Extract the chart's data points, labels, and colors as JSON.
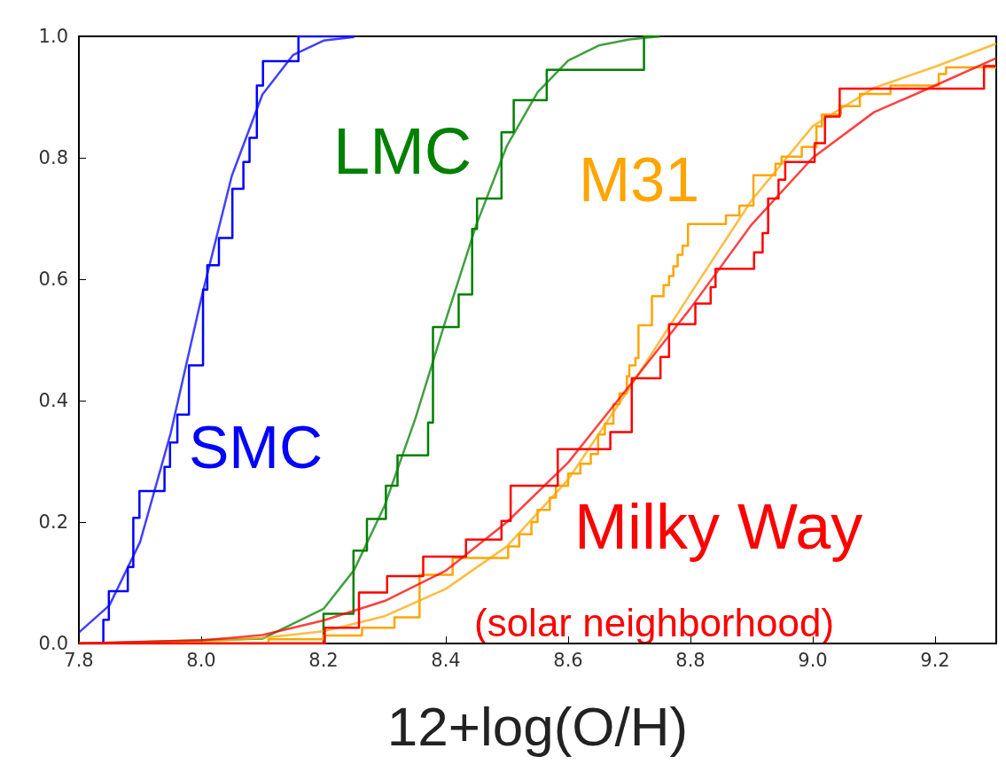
{
  "chart_data": {
    "type": "step",
    "xlabel": "12+log(O/H)",
    "xlim": [
      7.8,
      9.3
    ],
    "ylim": [
      0,
      1
    ],
    "xticks": [
      7.8,
      {
        "value": 8,
        "label": "8.0"
      },
      8.2,
      8.4,
      8.6,
      8.8,
      {
        "value": 9,
        "label": "9.0"
      },
      9.2
    ],
    "yticks": [
      {
        "value": 0,
        "label": "0.0"
      },
      0.2,
      0.4,
      0.6,
      0.8,
      {
        "value": 1,
        "label": "1.0"
      }
    ],
    "grid": false,
    "legend": false,
    "marker": "none",
    "line_style": "solid",
    "annotations": [
      "(solar neighborhood)"
    ],
    "series": [
      {
        "name": "SMC",
        "type": "step",
        "color": "#0000ff",
        "x": [
          7.8,
          7.84,
          7.849,
          7.88,
          7.889,
          7.899,
          7.94,
          7.949,
          7.961,
          7.98,
          8.003,
          8.01,
          8.029,
          8.051,
          8.069,
          8.079,
          8.091,
          8.101,
          8.159,
          8.25
        ],
        "values": [
          0,
          0.039,
          0.086,
          0.126,
          0.207,
          0.251,
          0.291,
          0.331,
          0.377,
          0.458,
          0.583,
          0.623,
          0.668,
          0.749,
          0.793,
          0.833,
          0.919,
          0.959,
          1,
          1
        ]
      },
      {
        "type": "line",
        "color": "#0000ff",
        "x": [
          7.8,
          7.85,
          7.9,
          7.95,
          8.0,
          8.05,
          8.1,
          8.15,
          8.2,
          8.25
        ],
        "values": [
          0.018,
          0.063,
          0.167,
          0.346,
          0.568,
          0.77,
          0.904,
          0.969,
          0.993,
          0.999
        ]
      },
      {
        "name": "LMC",
        "type": "step",
        "color": "#008000",
        "x": [
          7.8,
          8.2,
          8.249,
          8.271,
          8.302,
          8.321,
          8.371,
          8.379,
          8.421,
          8.443,
          8.451,
          8.491,
          8.511,
          8.565,
          8.724,
          8.75
        ],
        "values": [
          0,
          0.049,
          0.153,
          0.205,
          0.26,
          0.31,
          0.364,
          0.521,
          0.575,
          0.683,
          0.733,
          0.842,
          0.895,
          0.945,
          1,
          1
        ]
      },
      {
        "type": "line",
        "color": "#008000",
        "x": [
          7.8,
          8.1,
          8.2,
          8.25,
          8.3,
          8.35,
          8.4,
          8.45,
          8.5,
          8.55,
          8.6,
          8.65,
          8.7,
          8.75
        ],
        "values": [
          0,
          0.008,
          0.057,
          0.121,
          0.227,
          0.37,
          0.533,
          0.69,
          0.82,
          0.908,
          0.96,
          0.985,
          0.995,
          1
        ]
      },
      {
        "name": "M31",
        "type": "step",
        "color": "#ffa500",
        "x": [
          7.8,
          8.11,
          8.2,
          8.263,
          8.316,
          8.357,
          8.411,
          8.502,
          8.52,
          8.54,
          8.55,
          8.57,
          8.58,
          8.6,
          8.62,
          8.637,
          8.649,
          8.66,
          8.674,
          8.684,
          8.696,
          8.7,
          8.71,
          8.715,
          8.737,
          8.756,
          8.765,
          8.772,
          8.779,
          8.787,
          8.796,
          8.858,
          8.88,
          8.903,
          8.939,
          8.949,
          8.982,
          9.006,
          9.015,
          9.046,
          9.077,
          9.127,
          9.206,
          9.218,
          9.3
        ],
        "values": [
          0,
          0.007,
          0.013,
          0.026,
          0.043,
          0.113,
          0.141,
          0.16,
          0.18,
          0.2,
          0.22,
          0.24,
          0.26,
          0.28,
          0.296,
          0.312,
          0.344,
          0.362,
          0.394,
          0.412,
          0.44,
          0.458,
          0.47,
          0.524,
          0.572,
          0.59,
          0.605,
          0.621,
          0.64,
          0.655,
          0.691,
          0.705,
          0.721,
          0.771,
          0.79,
          0.802,
          0.818,
          0.852,
          0.871,
          0.885,
          0.905,
          0.919,
          0.938,
          0.949,
          0.949
        ]
      },
      {
        "type": "line",
        "color": "#ffa500",
        "x": [
          7.8,
          8.0,
          8.1,
          8.2,
          8.3,
          8.4,
          8.5,
          8.6,
          8.7,
          8.8,
          8.9,
          9.0,
          9.1,
          9.2,
          9.3
        ],
        "values": [
          0,
          0.003,
          0.009,
          0.02,
          0.045,
          0.09,
          0.16,
          0.27,
          0.42,
          0.576,
          0.73,
          0.852,
          0.915,
          0.95,
          0.988
        ]
      },
      {
        "name": "Milky Way",
        "type": "step",
        "color": "#ff0000",
        "x": [
          7.8,
          8.202,
          8.258,
          8.304,
          8.363,
          8.433,
          8.491,
          8.506,
          8.583,
          8.669,
          8.704,
          8.751,
          8.765,
          8.808,
          8.833,
          8.841,
          8.904,
          8.918,
          8.927,
          8.944,
          8.955,
          9.003,
          9.02,
          9.044,
          9.28,
          9.3
        ],
        "values": [
          0,
          0.026,
          0.084,
          0.111,
          0.143,
          0.171,
          0.202,
          0.26,
          0.32,
          0.348,
          0.437,
          0.472,
          0.526,
          0.56,
          0.587,
          0.617,
          0.644,
          0.676,
          0.733,
          0.764,
          0.793,
          0.824,
          0.868,
          0.914,
          0.951,
          0.951
        ]
      },
      {
        "type": "line",
        "color": "#ff0000",
        "x": [
          7.8,
          8.0,
          8.1,
          8.2,
          8.3,
          8.4,
          8.5,
          8.6,
          8.71,
          8.8,
          8.9,
          9.0,
          9.1,
          9.2,
          9.3
        ],
        "values": [
          0,
          0.005,
          0.014,
          0.038,
          0.07,
          0.12,
          0.2,
          0.298,
          0.437,
          0.552,
          0.69,
          0.8,
          0.875,
          0.919,
          0.964
        ]
      }
    ]
  }
}
